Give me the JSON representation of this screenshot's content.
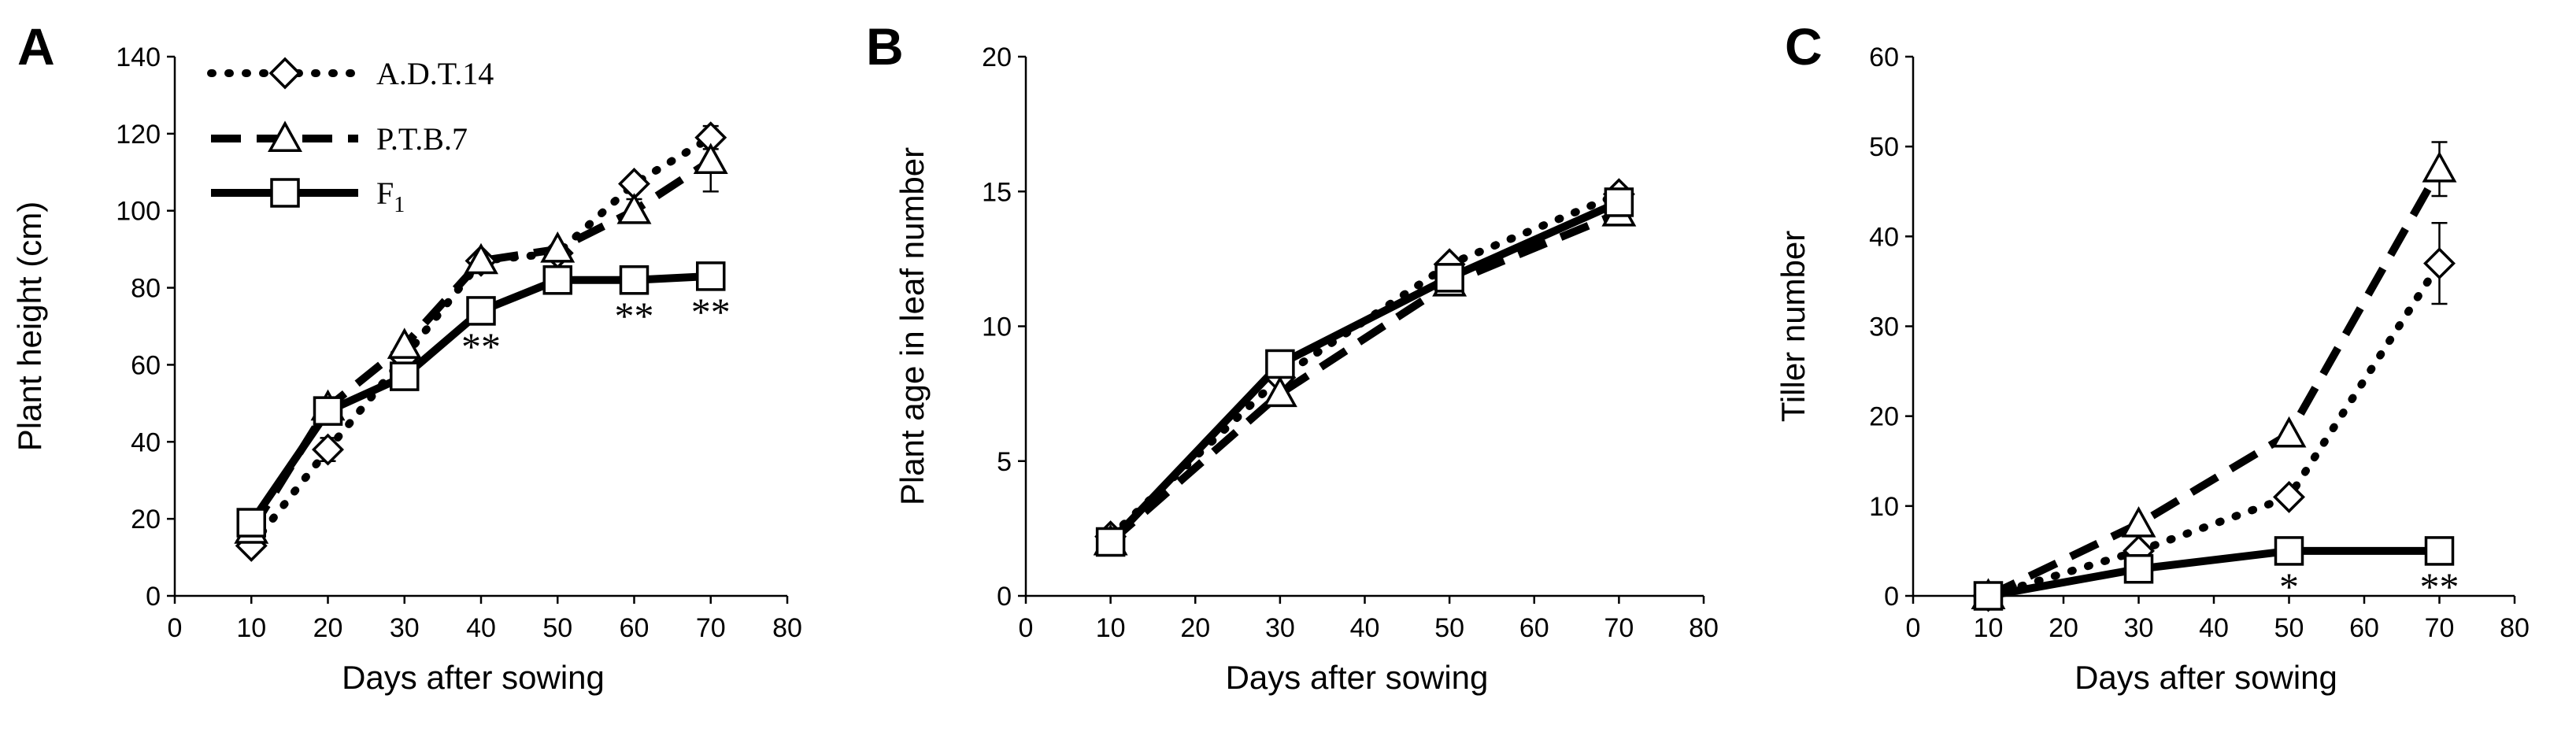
{
  "legend": [
    {
      "series": "A.D.T.14",
      "text": "A.D.T.14",
      "sub": ""
    },
    {
      "series": "P.T.B.7",
      "text": "P.T.B.7",
      "sub": ""
    },
    {
      "series": "F1",
      "text": "F",
      "sub": "1"
    }
  ],
  "chart_data": [
    {
      "type": "line",
      "panel_label": "A",
      "title": "",
      "xlabel": "Days after sowing",
      "ylabel": "Plant height (cm)",
      "xlim": [
        0,
        80
      ],
      "ylim": [
        0,
        140
      ],
      "xticks": [
        0,
        10,
        20,
        30,
        40,
        50,
        60,
        70,
        80
      ],
      "yticks": [
        0,
        20,
        40,
        60,
        80,
        100,
        120,
        140
      ],
      "x": [
        10,
        20,
        30,
        40,
        50,
        60,
        70
      ],
      "series": [
        {
          "name": "A.D.T.14",
          "marker": "diamond",
          "dash": "dotted",
          "values": [
            13,
            38,
            62,
            87,
            89,
            107,
            119
          ],
          "errors": [
            0,
            3,
            0,
            0,
            0,
            0,
            3
          ]
        },
        {
          "name": "P.T.B.7",
          "marker": "triangle",
          "dash": "dashed",
          "values": [
            17,
            49,
            65,
            87,
            90,
            100,
            113
          ],
          "errors": [
            0,
            0,
            0,
            0,
            0,
            3,
            8
          ]
        },
        {
          "name": "F1",
          "marker": "square",
          "dash": "solid",
          "values": [
            19,
            48,
            57,
            74,
            82,
            82,
            83
          ],
          "errors": [
            0,
            0,
            0,
            0,
            0,
            0,
            0
          ]
        }
      ],
      "annotations": [
        {
          "x": 40,
          "y": 74,
          "text": "**"
        },
        {
          "x": 60,
          "y": 82,
          "text": "**"
        },
        {
          "x": 70,
          "y": 83,
          "text": "**"
        }
      ]
    },
    {
      "type": "line",
      "panel_label": "B",
      "title": "",
      "xlabel": "Days after sowing",
      "ylabel": "Plant age in leaf number",
      "xlim": [
        0,
        80
      ],
      "ylim": [
        0,
        20
      ],
      "xticks": [
        0,
        10,
        20,
        30,
        40,
        50,
        60,
        70,
        80
      ],
      "yticks": [
        0,
        5,
        10,
        15,
        20
      ],
      "x": [
        10,
        30,
        50,
        70
      ],
      "series": [
        {
          "name": "A.D.T.14",
          "marker": "diamond",
          "dash": "dotted",
          "values": [
            2.2,
            8.1,
            12.3,
            14.9
          ],
          "errors": [
            0,
            0,
            0,
            0
          ]
        },
        {
          "name": "P.T.B.7",
          "marker": "triangle",
          "dash": "dashed",
          "values": [
            2.0,
            7.5,
            11.6,
            14.2
          ],
          "errors": [
            0,
            0,
            0,
            0
          ]
        },
        {
          "name": "F1",
          "marker": "square",
          "dash": "solid",
          "values": [
            2.0,
            8.6,
            11.8,
            14.6
          ],
          "errors": [
            0,
            0,
            0,
            0
          ]
        }
      ],
      "annotations": []
    },
    {
      "type": "line",
      "panel_label": "C",
      "title": "",
      "xlabel": "Days after sowing",
      "ylabel": "Tiller number",
      "xlim": [
        0,
        80
      ],
      "ylim": [
        0,
        60
      ],
      "xticks": [
        0,
        10,
        20,
        30,
        40,
        50,
        60,
        70,
        80
      ],
      "yticks": [
        0,
        10,
        20,
        30,
        40,
        50,
        60
      ],
      "x": [
        10,
        30,
        50,
        70
      ],
      "series": [
        {
          "name": "A.D.T.14",
          "marker": "diamond",
          "dash": "dotted",
          "values": [
            0,
            5,
            11,
            37
          ],
          "errors": [
            0,
            0,
            0,
            4.5
          ]
        },
        {
          "name": "P.T.B.7",
          "marker": "triangle",
          "dash": "dashed",
          "values": [
            0,
            8,
            18,
            47.5
          ],
          "errors": [
            0,
            0,
            0,
            3
          ]
        },
        {
          "name": "F1",
          "marker": "square",
          "dash": "solid",
          "values": [
            0,
            3,
            5,
            5
          ],
          "errors": [
            0,
            0,
            0,
            0
          ]
        }
      ],
      "annotations": [
        {
          "x": 50,
          "y": 5,
          "text": "*"
        },
        {
          "x": 70,
          "y": 5,
          "text": "**"
        }
      ]
    }
  ]
}
